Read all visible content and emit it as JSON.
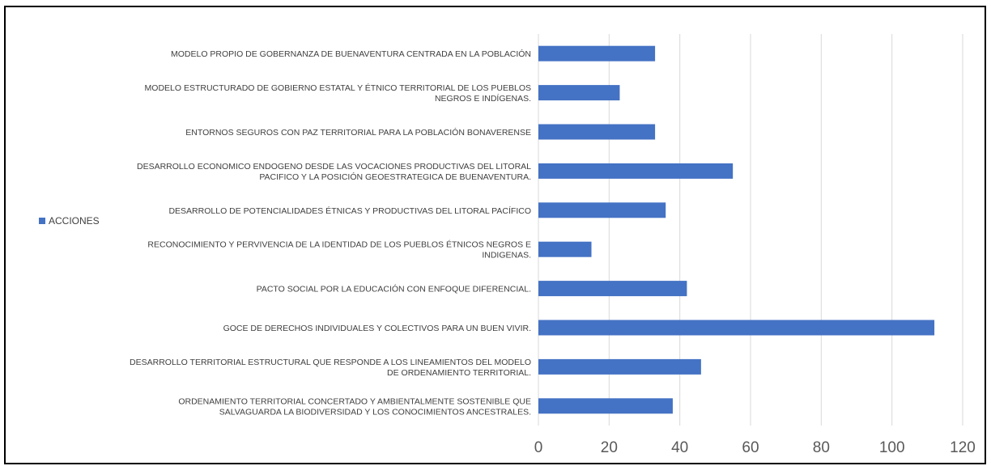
{
  "chart_data": {
    "type": "bar",
    "orientation": "horizontal",
    "categories": [
      "MODELO PROPIO DE GOBERNANZA DE BUENAVENTURA CENTRADA EN LA POBLACIÓN",
      "MODELO ESTRUCTURADO DE GOBIERNO ESTATAL Y ÉTNICO TERRITORIAL DE LOS PUEBLOS NEGROS E INDÍGENAS.",
      "ENTORNOS SEGUROS CON PAZ TERRITORIAL PARA LA POBLACIÓN BONAVERENSE",
      "DESARROLLO ECONOMICO ENDOGENO DESDE LAS VOCACIONES PRODUCTIVAS DEL LITORAL PACIFICO Y LA POSICIÓN GEOESTRATEGICA DE BUENAVENTURA.",
      "DESARROLLO DE POTENCIALIDADES ÉTNICAS Y PRODUCTIVAS DEL LITORAL PACÍFICO",
      "RECONOCIMIENTO Y PERVIVENCIA DE LA IDENTIDAD DE LOS PUEBLOS ÉTNICOS NEGROS E INDIGENAS.",
      "PACTO SOCIAL POR LA EDUCACIÓN CON ENFOQUE DIFERENCIAL.",
      "GOCE DE DERECHOS INDIVIDUALES Y COLECTIVOS PARA UN BUEN VIVIR.",
      "DESARROLLO TERRITORIAL ESTRUCTURAL QUE RESPONDE A LOS LINEAMIENTOS DEL MODELO DE ORDENAMIENTO TERRITORIAL.",
      "ORDENAMIENTO TERRITORIAL CONCERTADO Y AMBIENTALMENTE SOSTENIBLE QUE SALVAGUARDA LA BIODIVERSIDAD Y LOS CONOCIMIENTOS ANCESTRALES."
    ],
    "category_lines": [
      [
        "MODELO PROPIO DE GOBERNANZA DE BUENAVENTURA CENTRADA EN LA POBLACIÓN"
      ],
      [
        "MODELO ESTRUCTURADO DE GOBIERNO ESTATAL Y ÉTNICO TERRITORIAL DE LOS PUEBLOS",
        "NEGROS E INDÍGENAS."
      ],
      [
        "ENTORNOS SEGUROS CON PAZ TERRITORIAL PARA LA POBLACIÓN BONAVERENSE"
      ],
      [
        "DESARROLLO ECONOMICO ENDOGENO DESDE LAS VOCACIONES PRODUCTIVAS DEL LITORAL",
        "PACIFICO Y LA POSICIÓN GEOESTRATEGICA DE BUENAVENTURA."
      ],
      [
        "DESARROLLO DE POTENCIALIDADES ÉTNICAS Y PRODUCTIVAS DEL LITORAL PACÍFICO"
      ],
      [
        "RECONOCIMIENTO Y PERVIVENCIA DE LA IDENTIDAD DE LOS PUEBLOS ÉTNICOS NEGROS E",
        "INDIGENAS."
      ],
      [
        "PACTO SOCIAL POR LA EDUCACIÓN CON ENFOQUE DIFERENCIAL."
      ],
      [
        "GOCE DE DERECHOS INDIVIDUALES Y COLECTIVOS PARA UN BUEN VIVIR."
      ],
      [
        "DESARROLLO TERRITORIAL ESTRUCTURAL QUE RESPONDE A LOS LINEAMIENTOS DEL MODELO",
        "DE ORDENAMIENTO TERRITORIAL."
      ],
      [
        "ORDENAMIENTO TERRITORIAL CONCERTADO Y AMBIENTALMENTE SOSTENIBLE QUE",
        "SALVAGUARDA LA BIODIVERSIDAD Y LOS CONOCIMIENTOS ANCESTRALES."
      ]
    ],
    "series": [
      {
        "name": "ACCIONES",
        "values": [
          33,
          23,
          33,
          55,
          36,
          15,
          42,
          112,
          46,
          38
        ]
      }
    ],
    "xlim": [
      0,
      120
    ],
    "x_ticks": [
      "0",
      "20",
      "40",
      "60",
      "80",
      "100",
      "120"
    ],
    "grid": true,
    "legend_position": "left",
    "colors": {
      "bar": "#4472C4",
      "grid": "#D9D9D9"
    }
  }
}
